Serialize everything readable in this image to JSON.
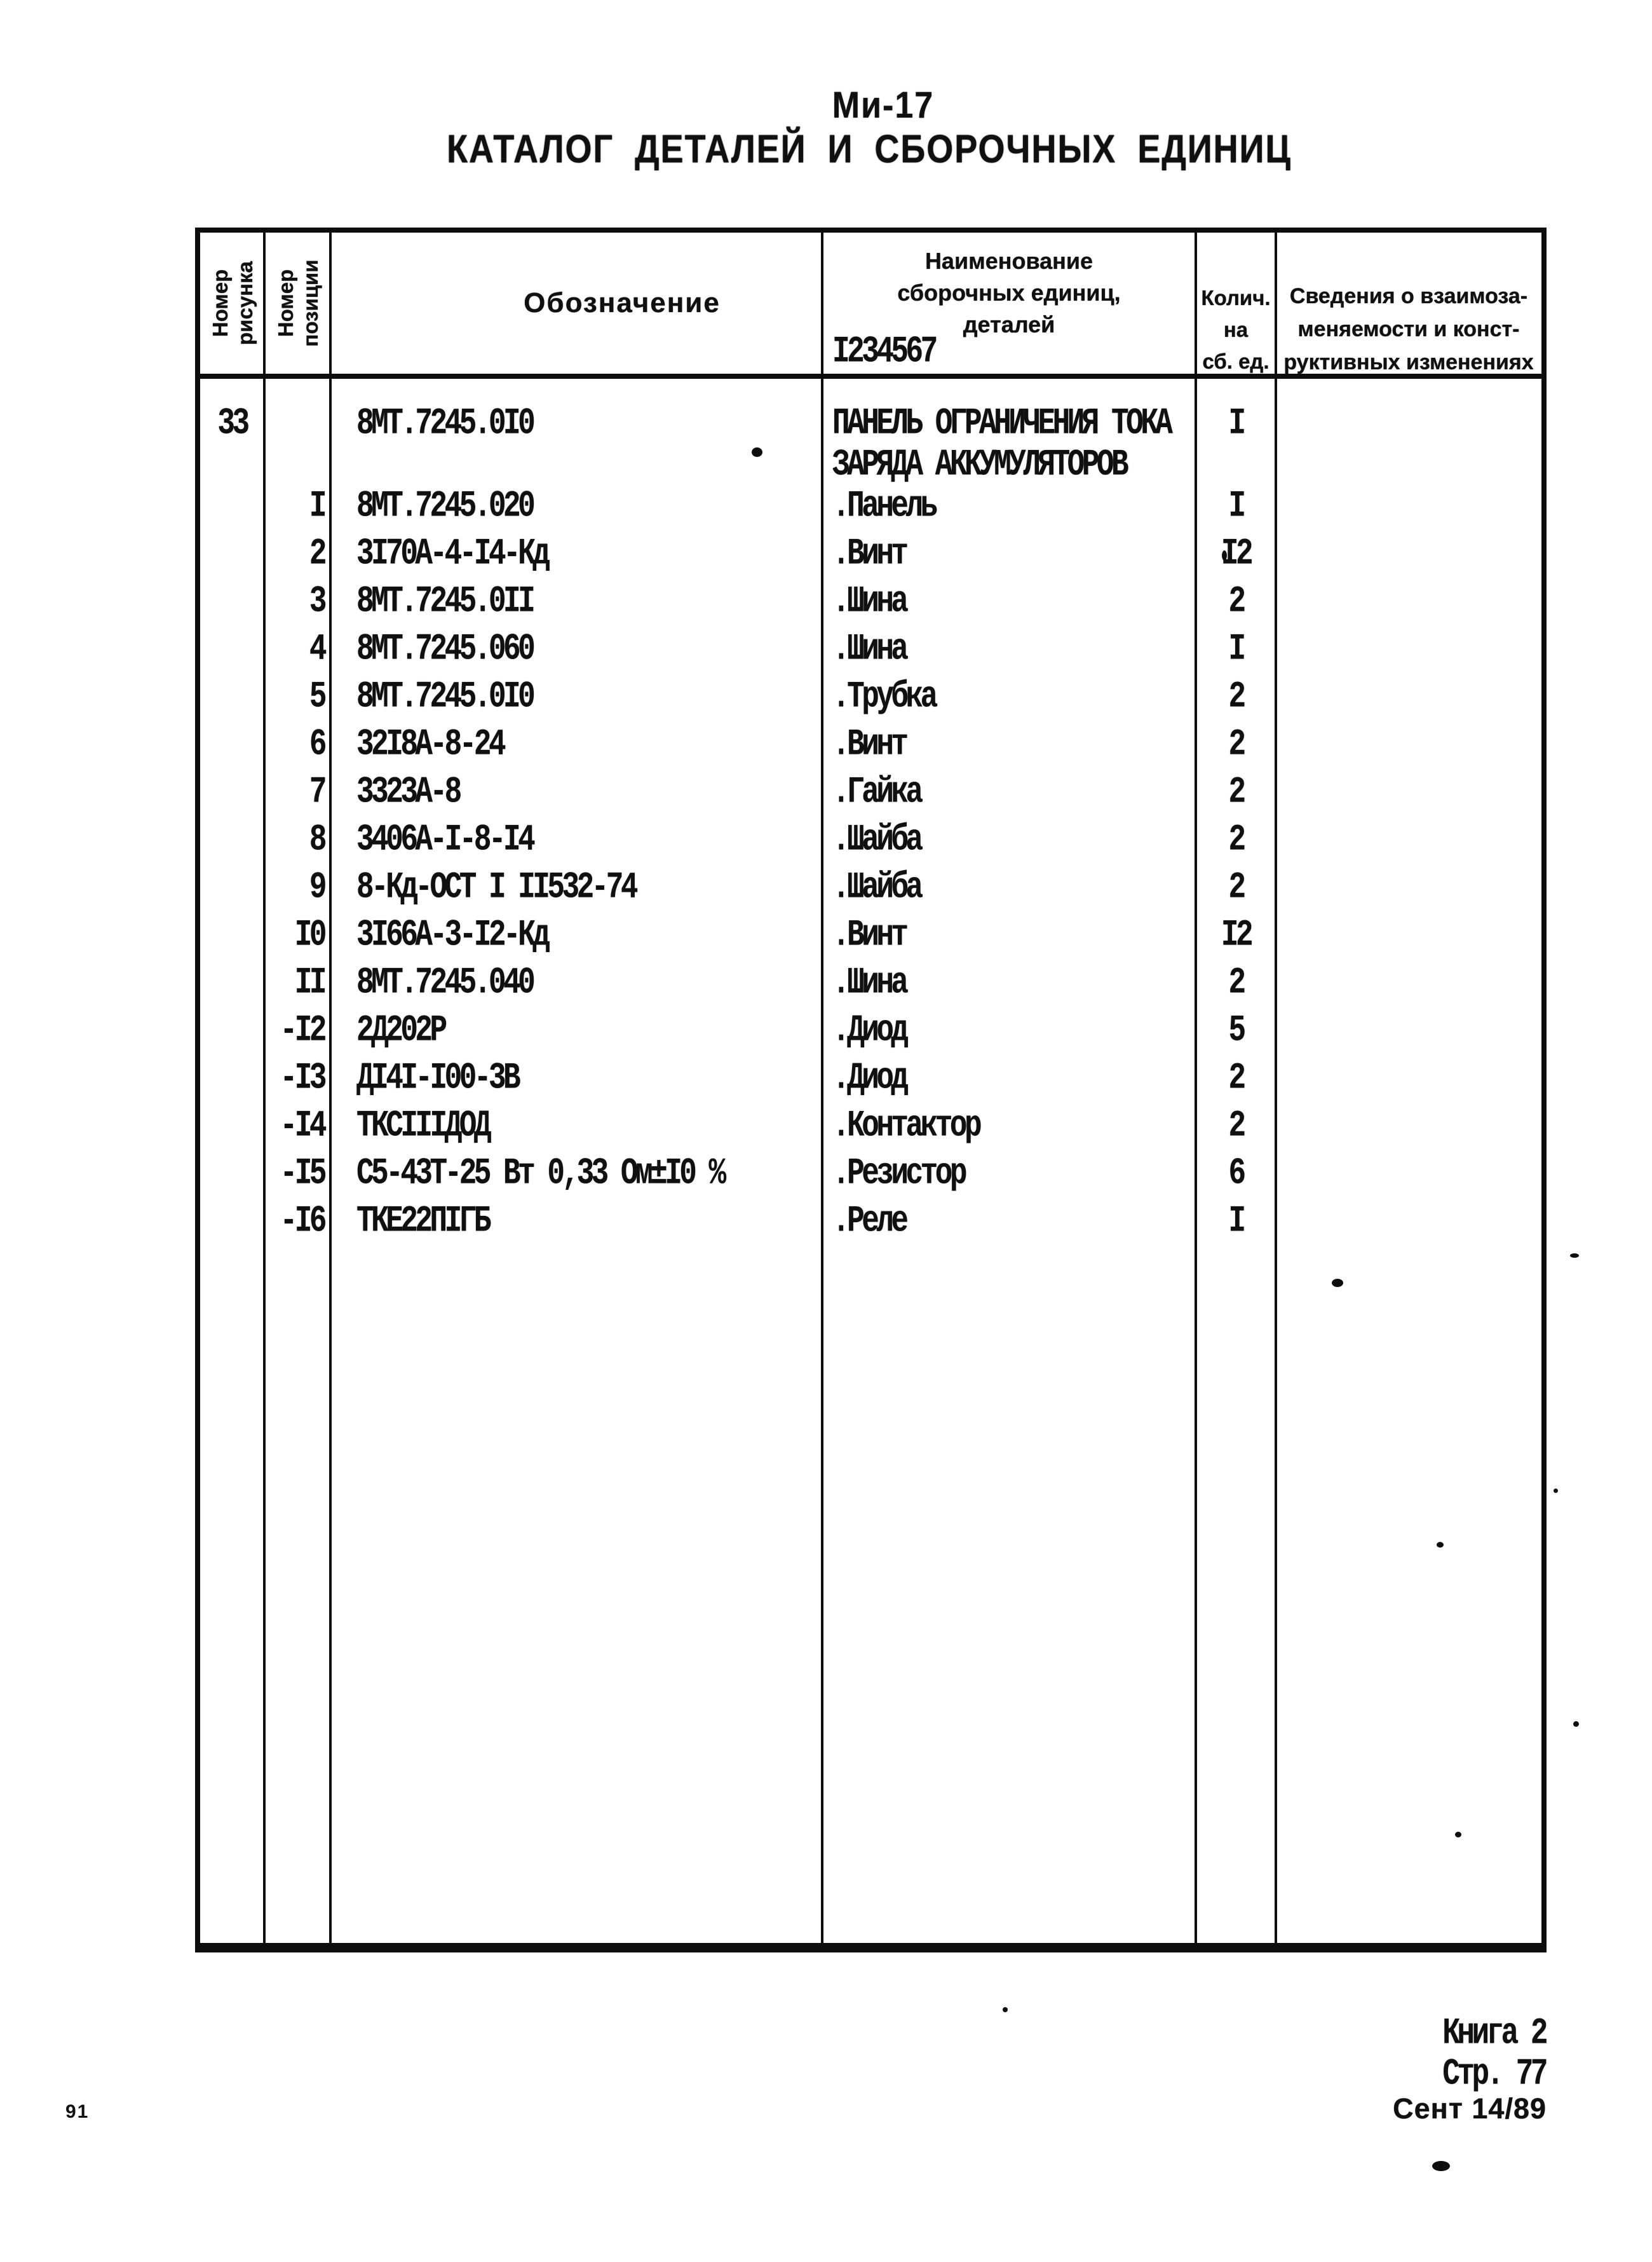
{
  "page": {
    "doc_title": "Ми-17",
    "doc_subtitle": "КАТАЛОГ ДЕТАЛЕЙ И СБОРОЧНЫХ ЕДИНИЦ",
    "page_number": "91",
    "footer": {
      "book": "Книга 2",
      "page": "Стр. 77",
      "date": "Сент 14/89"
    }
  },
  "table": {
    "headers": {
      "figure_col": [
        "Номер",
        "рисунка"
      ],
      "position_col": [
        "Номер",
        "позиции"
      ],
      "designation_col": "Обозначение",
      "name_col": [
        "Наименование",
        "сборочных единиц,",
        "деталей"
      ],
      "name_col_index": "I234567",
      "qty_col": [
        "Колич.",
        "на",
        "сб. ед."
      ],
      "notes_col": [
        "Сведения о взаимоза-",
        "меняемости и конст-",
        "руктивных изменениях"
      ]
    },
    "main_row": {
      "figure": "33",
      "designation": "8МТ.7245.0I0",
      "name_lines": [
        "ПАНЕЛЬ ОГРАНИЧЕНИЯ ТОКА",
        "ЗАРЯДА АККУМУЛЯТОРОВ"
      ],
      "qty": "I"
    },
    "rows": [
      {
        "pos": "I",
        "designation": "8МТ.7245.020",
        "name": ".Панель",
        "qty": "I"
      },
      {
        "pos": "2",
        "designation": "3I70А-4-I4-Кд",
        "name": ".Винт",
        "qty": "I2"
      },
      {
        "pos": "3",
        "designation": "8МТ.7245.0II",
        "name": ".Шина",
        "qty": "2"
      },
      {
        "pos": "4",
        "designation": "8МТ.7245.060",
        "name": ".Шина",
        "qty": "I"
      },
      {
        "pos": "5",
        "designation": "8МТ.7245.0I0",
        "name": ".Трубка",
        "qty": "2"
      },
      {
        "pos": "6",
        "designation": "32I8А-8-24",
        "name": ".Винт",
        "qty": "2"
      },
      {
        "pos": "7",
        "designation": "3323А-8",
        "name": ".Гайка",
        "qty": "2"
      },
      {
        "pos": "8",
        "designation": "3406А-I-8-I4",
        "name": ".Шайба",
        "qty": "2"
      },
      {
        "pos": "9",
        "designation": "8-Кд-ОСТ I II532-74",
        "name": ".Шайба",
        "qty": "2"
      },
      {
        "pos": "I0",
        "designation": "3I66А-3-I2-Кд",
        "name": ".Винт",
        "qty": "I2"
      },
      {
        "pos": "II",
        "designation": "8МТ.7245.040",
        "name": ".Шина",
        "qty": "2"
      },
      {
        "pos": "-I2",
        "designation": "2Д202Р",
        "name": ".Диод",
        "qty": "5"
      },
      {
        "pos": "-I3",
        "designation": "ДI4I-I00-3В",
        "name": ".Диод",
        "qty": "2"
      },
      {
        "pos": "-I4",
        "designation": "ТКСIIIДОД",
        "name": ".Контактор",
        "qty": "2"
      },
      {
        "pos": "-I5",
        "designation": "С5-43Т-25 Вт 0,33 Ом±I0 %",
        "name": ".Резистор",
        "qty": "6"
      },
      {
        "pos": "-I6",
        "designation": "ТКЕ22ПIГБ",
        "name": ".Реле",
        "qty": "I"
      }
    ]
  }
}
